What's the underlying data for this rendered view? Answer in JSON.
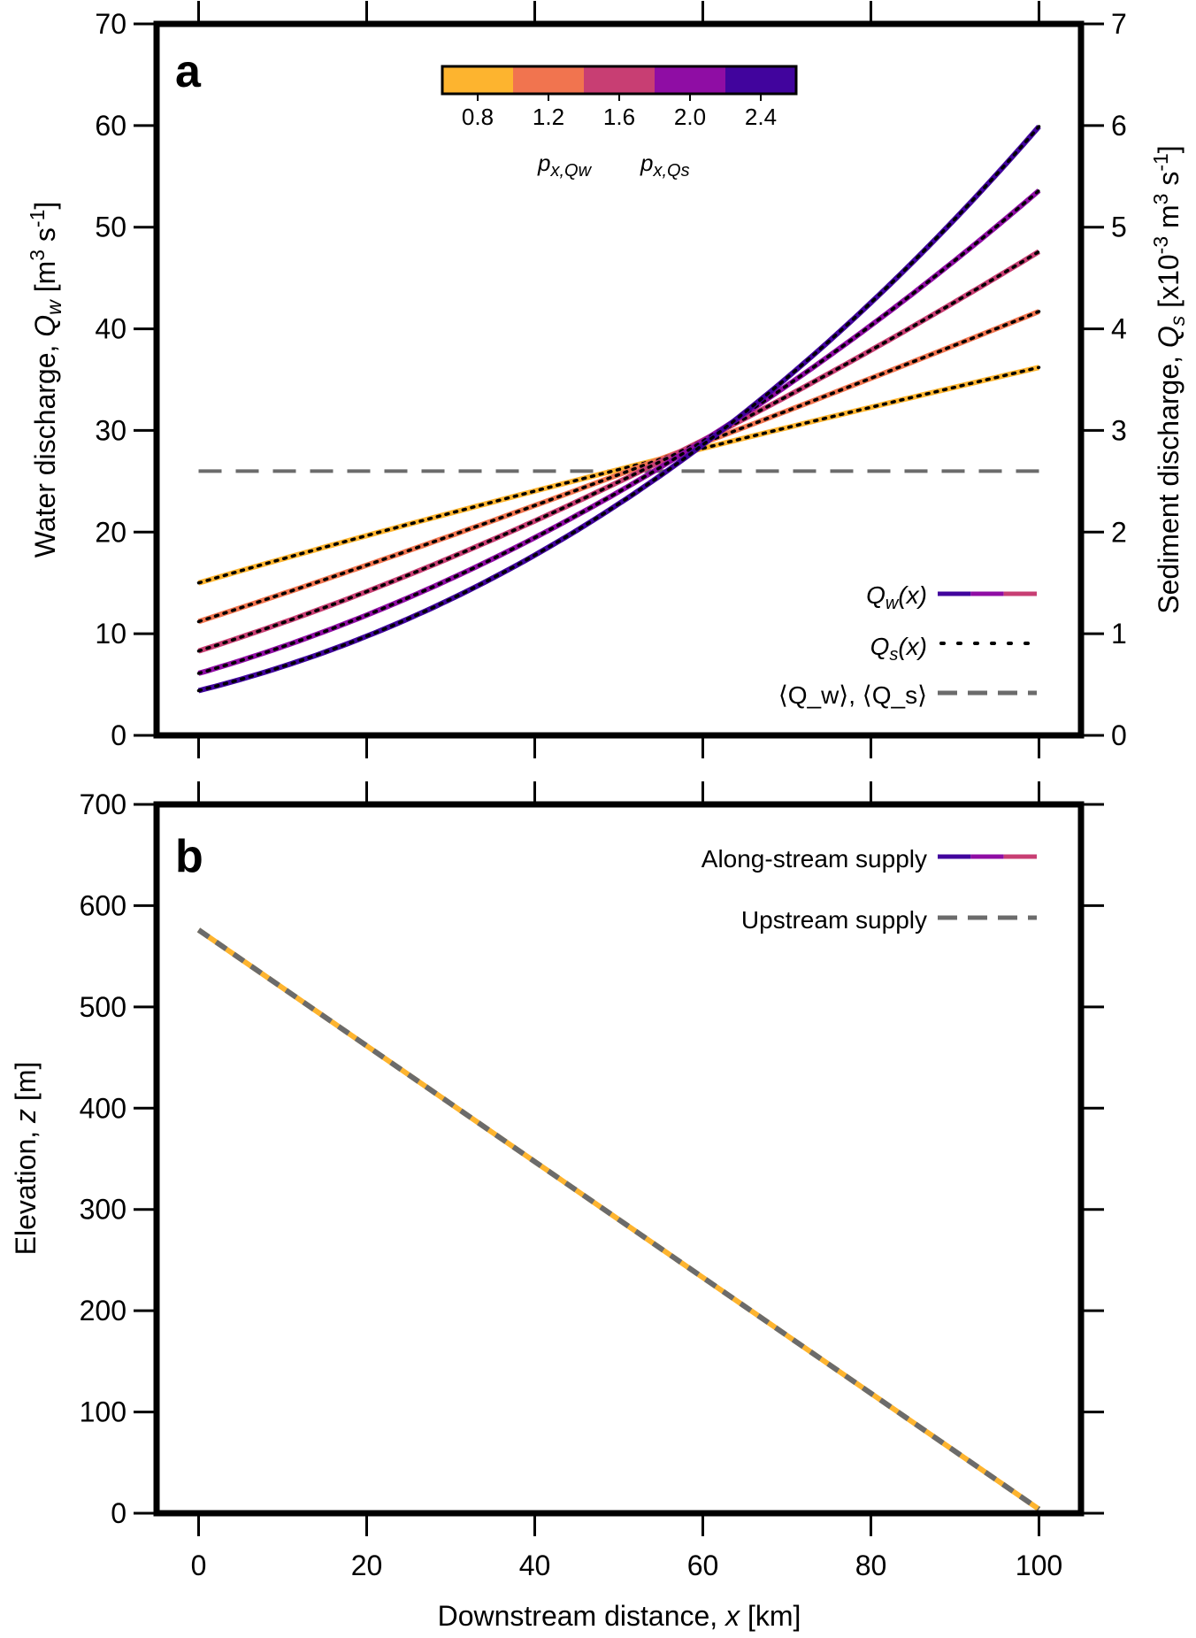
{
  "colors": {
    "series": [
      "#FDB42F",
      "#F1744F",
      "#C83E73",
      "#8F0DA4",
      "#41049D"
    ],
    "mean_line": "#6b6b6b",
    "dots": "#000000",
    "frame": "#000000"
  },
  "chart_data": [
    {
      "type": "line",
      "panel_label": "a",
      "xlim": [
        -5,
        105
      ],
      "x_ticks": [
        0,
        20,
        40,
        60,
        80,
        100
      ],
      "ylabel": "Water discharge, Q_w [m^3 s^-1]",
      "ylabel_parts": {
        "pre": "Water discharge, ",
        "var": "Q",
        "sub": "w",
        "unit_open": " [m",
        "sup1": "3",
        "unit_mid": " s",
        "sup2": "-1",
        "unit_close": "]"
      },
      "ylim": [
        0,
        70
      ],
      "y_ticks": [
        0,
        10,
        20,
        30,
        40,
        50,
        60,
        70
      ],
      "y2label": "Sediment discharge, Q_s [x10^-3 m^3 s^-1]",
      "y2label_parts": {
        "pre": "Sediment discharge, ",
        "var": "Q",
        "sub": "s",
        "unit_open": " [x10",
        "sup0": "-3",
        "unit_mid": " m",
        "sup1": "3",
        "unit_mid2": " s",
        "sup2": "-1",
        "unit_close": "]"
      },
      "y2lim": [
        0,
        7
      ],
      "y2_ticks": [
        0,
        1,
        2,
        3,
        4,
        5,
        6,
        7
      ],
      "colorbar": {
        "ticks": [
          "0.8",
          "1.2",
          "1.6",
          "2.0",
          "2.4"
        ],
        "tick_values": [
          0.8,
          1.2,
          1.6,
          2.0,
          2.4
        ],
        "range": [
          0.6,
          2.6
        ],
        "label_left": {
          "var": "p",
          "sub": "x,Qw"
        },
        "label_right": {
          "var": "p",
          "sub": "x,Qs"
        }
      },
      "series": [
        {
          "p": 0.8,
          "x": [
            0,
            100
          ],
          "y_start": 15.0,
          "y_end": 36.2
        },
        {
          "p": 1.2,
          "x": [
            0,
            100
          ],
          "y_start": 11.2,
          "y_end": 41.7
        },
        {
          "p": 1.6,
          "x": [
            0,
            100
          ],
          "y_start": 8.3,
          "y_end": 47.6
        },
        {
          "p": 2.0,
          "x": [
            0,
            100
          ],
          "y_start": 6.1,
          "y_end": 53.6
        },
        {
          "p": 2.4,
          "x": [
            0,
            100
          ],
          "y_start": 4.4,
          "y_end": 59.9
        }
      ],
      "mean_value": 26.0,
      "legend": [
        {
          "text_var": "Q",
          "text_sub": "w",
          "text_rest": "(x)",
          "style": "solid-colored"
        },
        {
          "text_var": "Q",
          "text_sub": "s",
          "text_rest": "(x)",
          "style": "dotted"
        },
        {
          "text": "⟨Q_w⟩, ⟨Q_s⟩",
          "style": "dashed"
        }
      ]
    },
    {
      "type": "line",
      "panel_label": "b",
      "xlabel": "Downstream distance, x [km]",
      "xlabel_parts": {
        "pre": "Downstream distance, ",
        "var": "x",
        "post": " [km]"
      },
      "xlim": [
        -5,
        105
      ],
      "x_ticks": [
        0,
        20,
        40,
        60,
        80,
        100
      ],
      "ylabel": "Elevation, z [m]",
      "ylabel_parts": {
        "pre": "Elevation, ",
        "var": "z",
        "post": " [m]"
      },
      "ylim": [
        0,
        700
      ],
      "y_ticks": [
        0,
        100,
        200,
        300,
        400,
        500,
        600,
        700
      ],
      "series": [
        {
          "name": "Along-stream supply",
          "x": [
            0,
            100
          ],
          "y": [
            576,
            4
          ]
        },
        {
          "name": "Upstream supply",
          "x": [
            0,
            100
          ],
          "y": [
            576,
            4
          ]
        }
      ],
      "legend": [
        {
          "text": "Along-stream supply",
          "style": "solid-colored"
        },
        {
          "text": "Upstream supply",
          "style": "dashed"
        }
      ]
    }
  ]
}
